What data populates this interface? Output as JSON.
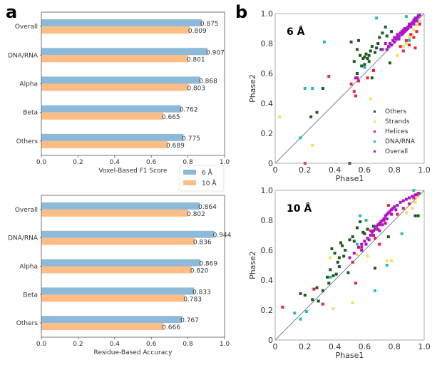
{
  "panels": {
    "a": "a",
    "b": "b"
  },
  "colors": {
    "res6": "#8dbad8",
    "res10": "#ffbd86",
    "Others": "#1e5a1e",
    "Strands": "#f0e060",
    "Helices": "#e8204a",
    "DNA/RNA": "#20c0b0",
    "Overall": "#b010c8",
    "diag": "#7080a8"
  },
  "chart_data": [
    {
      "type": "bar",
      "orientation": "horizontal",
      "categories": [
        "Overall",
        "DNA/RNA",
        "Alpha",
        "Beta",
        "Others"
      ],
      "series": [
        {
          "name": "6 Å",
          "values": [
            0.875,
            0.907,
            0.868,
            0.762,
            0.775
          ]
        },
        {
          "name": "10 Å",
          "values": [
            0.809,
            0.801,
            0.803,
            0.665,
            0.689
          ]
        }
      ],
      "xlabel": "Voxel-Based F1 Score",
      "xlim": [
        0,
        1.0
      ],
      "xticks": [
        "0.0",
        "0.2",
        "0.4",
        "0.6",
        "0.8",
        "1.0"
      ],
      "legend": {
        "entries": [
          "6 Å",
          "10 Å"
        ],
        "placement": "bottom-right"
      }
    },
    {
      "type": "bar",
      "orientation": "horizontal",
      "categories": [
        "Overall",
        "DNA/RNA",
        "Alpha",
        "Beta",
        "Others"
      ],
      "series": [
        {
          "name": "6 Å",
          "values": [
            0.864,
            0.944,
            0.869,
            0.833,
            0.767
          ]
        },
        {
          "name": "10 Å",
          "values": [
            0.802,
            0.836,
            0.82,
            0.783,
            0.666
          ]
        }
      ],
      "xlabel": "Residue-Based Accuracy",
      "xlim": [
        0,
        1.0
      ],
      "xticks": [
        "0.0",
        "0.2",
        "0.4",
        "0.6",
        "0.8",
        "1.0"
      ]
    },
    {
      "type": "scatter",
      "title": "6 Å",
      "xlabel": "Phase1",
      "ylabel": "Phase2",
      "xlim": [
        0,
        1.0
      ],
      "ylim": [
        0,
        1.0
      ],
      "xticks": [
        "0",
        "0.2",
        "0.4",
        "0.6",
        "0.8",
        "1.0"
      ],
      "yticks": [
        "0",
        "0.2",
        "0.4",
        "0.6",
        "0.8",
        "1.0"
      ],
      "legend": {
        "entries": [
          "Others",
          "Strands",
          "Helices",
          "DNA/RNA",
          "Overall"
        ],
        "placement": "bottom-right"
      },
      "diagonal": true,
      "series": [
        {
          "name": "Others",
          "points": [
            [
              0.24,
              0.31
            ],
            [
              0.28,
              0.34
            ],
            [
              0.32,
              0.5
            ],
            [
              0.51,
              0.81
            ],
            [
              0.56,
              0.82
            ],
            [
              0.55,
              0.76
            ],
            [
              0.53,
              0.68
            ],
            [
              0.57,
              0.72
            ],
            [
              0.6,
              0.66
            ],
            [
              0.62,
              0.7
            ],
            [
              0.61,
              0.73
            ],
            [
              0.63,
              0.72
            ],
            [
              0.64,
              0.75
            ],
            [
              0.65,
              0.78
            ],
            [
              0.67,
              0.74
            ],
            [
              0.69,
              0.8
            ],
            [
              0.7,
              0.84
            ],
            [
              0.72,
              0.87
            ],
            [
              0.74,
              0.91
            ],
            [
              0.66,
              0.62
            ],
            [
              0.65,
              0.57
            ],
            [
              0.55,
              0.6
            ],
            [
              0.58,
              0.65
            ],
            [
              0.59,
              0.7
            ],
            [
              0.77,
              0.67
            ],
            [
              0.6,
              0.71
            ],
            [
              0.63,
              0.68
            ],
            [
              0.68,
              0.77
            ],
            [
              0.71,
              0.76
            ],
            [
              0.75,
              0.85
            ],
            [
              0.78,
              0.88
            ],
            [
              0.5,
              0.0
            ]
          ]
        },
        {
          "name": "Strands",
          "points": [
            [
              0.03,
              0.31
            ],
            [
              0.25,
              0.12
            ],
            [
              0.64,
              0.43
            ],
            [
              0.82,
              0.72
            ],
            [
              0.88,
              0.8
            ],
            [
              0.9,
              0.84
            ],
            [
              0.93,
              0.89
            ],
            [
              0.95,
              0.92
            ],
            [
              0.86,
              0.78
            ],
            [
              0.92,
              0.86
            ],
            [
              0.97,
              0.95
            ]
          ]
        },
        {
          "name": "Helices",
          "points": [
            [
              0.36,
              0.58
            ],
            [
              0.51,
              0.53
            ],
            [
              0.54,
              0.45
            ],
            [
              0.53,
              0.48
            ],
            [
              0.56,
              0.55
            ],
            [
              0.55,
              0.57
            ],
            [
              0.62,
              0.57
            ],
            [
              0.66,
              0.62
            ],
            [
              0.94,
              0.77
            ],
            [
              0.86,
              0.75
            ],
            [
              0.9,
              0.79
            ],
            [
              0.93,
              0.84
            ],
            [
              0.95,
              0.88
            ],
            [
              0.88,
              0.82
            ],
            [
              0.84,
              0.78
            ],
            [
              0.91,
              0.86
            ],
            [
              0.97,
              0.93
            ],
            [
              0.2,
              0.0
            ]
          ]
        },
        {
          "name": "DNA/RNA",
          "points": [
            [
              0.2,
              0.5
            ],
            [
              0.25,
              0.5
            ],
            [
              0.33,
              0.81
            ],
            [
              0.68,
              0.97
            ],
            [
              0.17,
              0.17
            ],
            [
              0.6,
              0.64
            ],
            [
              0.88,
              0.98
            ],
            [
              0.96,
              0.99
            ],
            [
              0.93,
              0.96
            ],
            [
              0.9,
              0.82
            ]
          ]
        },
        {
          "name": "Overall",
          "points": [
            [
              0.75,
              0.76
            ],
            [
              0.77,
              0.8
            ],
            [
              0.79,
              0.82
            ],
            [
              0.8,
              0.84
            ],
            [
              0.81,
              0.83
            ],
            [
              0.82,
              0.86
            ],
            [
              0.83,
              0.85
            ],
            [
              0.84,
              0.87
            ],
            [
              0.85,
              0.88
            ],
            [
              0.86,
              0.87
            ],
            [
              0.87,
              0.9
            ],
            [
              0.88,
              0.89
            ],
            [
              0.89,
              0.91
            ],
            [
              0.9,
              0.92
            ],
            [
              0.91,
              0.93
            ],
            [
              0.92,
              0.94
            ],
            [
              0.93,
              0.95
            ],
            [
              0.94,
              0.96
            ],
            [
              0.95,
              0.97
            ],
            [
              0.96,
              0.98
            ],
            [
              0.97,
              0.99
            ],
            [
              0.78,
              0.79
            ],
            [
              0.8,
              0.81
            ],
            [
              0.83,
              0.83
            ],
            [
              0.85,
              0.86
            ],
            [
              0.87,
              0.88
            ],
            [
              0.89,
              0.9
            ],
            [
              0.91,
              0.91
            ],
            [
              0.93,
              0.93
            ],
            [
              0.95,
              0.95
            ],
            [
              0.76,
              0.78
            ],
            [
              0.82,
              0.84
            ],
            [
              0.86,
              0.89
            ],
            [
              0.9,
              0.93
            ],
            [
              0.94,
              0.97
            ],
            [
              0.72,
              0.76
            ],
            [
              0.74,
              0.8
            ],
            [
              0.55,
              0.57
            ],
            [
              0.54,
              0.57
            ]
          ]
        }
      ]
    },
    {
      "type": "scatter",
      "title": "10 Å",
      "xlabel": "Phase1",
      "ylabel": "Phase2",
      "xlim": [
        0,
        1.0
      ],
      "ylim": [
        0,
        1.0
      ],
      "xticks": [
        "0",
        "0.2",
        "0.4",
        "0.6",
        "0.8",
        "1.0"
      ],
      "yticks": [
        "0",
        "0.2",
        "0.4",
        "0.6",
        "0.8",
        "1.0"
      ],
      "diagonal": true,
      "series": [
        {
          "name": "Others",
          "points": [
            [
              0.17,
              0.31
            ],
            [
              0.2,
              0.3
            ],
            [
              0.25,
              0.27
            ],
            [
              0.29,
              0.26
            ],
            [
              0.32,
              0.33
            ],
            [
              0.35,
              0.42
            ],
            [
              0.37,
              0.47
            ],
            [
              0.38,
              0.61
            ],
            [
              0.4,
              0.58
            ],
            [
              0.42,
              0.52
            ],
            [
              0.43,
              0.49
            ],
            [
              0.43,
              0.55
            ],
            [
              0.44,
              0.65
            ],
            [
              0.45,
              0.63
            ],
            [
              0.46,
              0.56
            ],
            [
              0.47,
              0.6
            ],
            [
              0.49,
              0.45
            ],
            [
              0.5,
              0.67
            ],
            [
              0.52,
              0.69
            ],
            [
              0.53,
              0.66
            ],
            [
              0.55,
              0.75
            ],
            [
              0.57,
              0.79
            ],
            [
              0.59,
              0.72
            ],
            [
              0.6,
              0.71
            ],
            [
              0.62,
              0.74
            ],
            [
              0.66,
              0.76
            ],
            [
              0.67,
              0.48
            ],
            [
              0.76,
              0.69
            ],
            [
              0.94,
              0.83
            ],
            [
              0.96,
              0.83
            ],
            [
              0.39,
              0.43
            ],
            [
              0.36,
              0.38
            ],
            [
              0.28,
              0.35
            ],
            [
              0.41,
              0.44
            ]
          ]
        },
        {
          "name": "Strands",
          "points": [
            [
              0.37,
              0.55
            ],
            [
              0.55,
              0.57
            ],
            [
              0.62,
              0.56
            ],
            [
              0.75,
              0.53
            ],
            [
              0.78,
              0.53
            ],
            [
              0.88,
              0.85
            ],
            [
              0.92,
              0.88
            ],
            [
              0.94,
              0.92
            ],
            [
              0.96,
              0.96
            ],
            [
              0.98,
              0.98
            ],
            [
              0.52,
              0.25
            ],
            [
              0.39,
              0.21
            ]
          ]
        },
        {
          "name": "Helices",
          "points": [
            [
              0.05,
              0.22
            ],
            [
              0.26,
              0.34
            ],
            [
              0.32,
              0.24
            ],
            [
              0.54,
              0.38
            ],
            [
              0.52,
              0.52
            ],
            [
              0.58,
              0.62
            ],
            [
              0.7,
              0.64
            ],
            [
              0.76,
              0.9
            ],
            [
              0.82,
              0.84
            ],
            [
              0.86,
              0.88
            ],
            [
              0.9,
              0.91
            ],
            [
              0.93,
              0.95
            ],
            [
              0.95,
              0.97
            ],
            [
              0.7,
              0.77
            ],
            [
              0.73,
              0.8
            ],
            [
              0.64,
              0.73
            ],
            [
              0.67,
              0.68
            ]
          ]
        },
        {
          "name": "DNA/RNA",
          "points": [
            [
              0.13,
              0.18
            ],
            [
              0.17,
              0.14
            ],
            [
              0.21,
              0.19
            ],
            [
              0.57,
              0.83
            ],
            [
              0.67,
              0.33
            ],
            [
              0.75,
              0.5
            ],
            [
              0.85,
              0.71
            ],
            [
              0.9,
              0.95
            ],
            [
              0.93,
              1.0
            ],
            [
              0.97,
              0.98
            ],
            [
              0.55,
              0.64
            ],
            [
              0.61,
              0.8
            ],
            [
              0.37,
              0.42
            ]
          ]
        },
        {
          "name": "Overall",
          "points": [
            [
              0.5,
              0.55
            ],
            [
              0.53,
              0.58
            ],
            [
              0.56,
              0.62
            ],
            [
              0.58,
              0.64
            ],
            [
              0.6,
              0.66
            ],
            [
              0.62,
              0.68
            ],
            [
              0.64,
              0.7
            ],
            [
              0.65,
              0.72
            ],
            [
              0.66,
              0.73
            ],
            [
              0.67,
              0.74
            ],
            [
              0.68,
              0.76
            ],
            [
              0.69,
              0.77
            ],
            [
              0.7,
              0.78
            ],
            [
              0.71,
              0.79
            ],
            [
              0.72,
              0.8
            ],
            [
              0.73,
              0.81
            ],
            [
              0.74,
              0.83
            ],
            [
              0.75,
              0.84
            ],
            [
              0.76,
              0.85
            ],
            [
              0.77,
              0.86
            ],
            [
              0.78,
              0.87
            ],
            [
              0.79,
              0.88
            ],
            [
              0.8,
              0.89
            ],
            [
              0.82,
              0.9
            ],
            [
              0.84,
              0.92
            ],
            [
              0.86,
              0.93
            ],
            [
              0.88,
              0.94
            ],
            [
              0.9,
              0.95
            ],
            [
              0.92,
              0.96
            ],
            [
              0.94,
              0.97
            ],
            [
              0.96,
              0.98
            ],
            [
              0.63,
              0.67
            ],
            [
              0.66,
              0.7
            ],
            [
              0.69,
              0.74
            ],
            [
              0.72,
              0.77
            ],
            [
              0.75,
              0.81
            ],
            [
              0.78,
              0.84
            ],
            [
              0.81,
              0.87
            ],
            [
              0.58,
              0.6
            ],
            [
              0.61,
              0.64
            ],
            [
              0.7,
              0.73
            ],
            [
              0.74,
              0.78
            ]
          ]
        }
      ]
    }
  ]
}
